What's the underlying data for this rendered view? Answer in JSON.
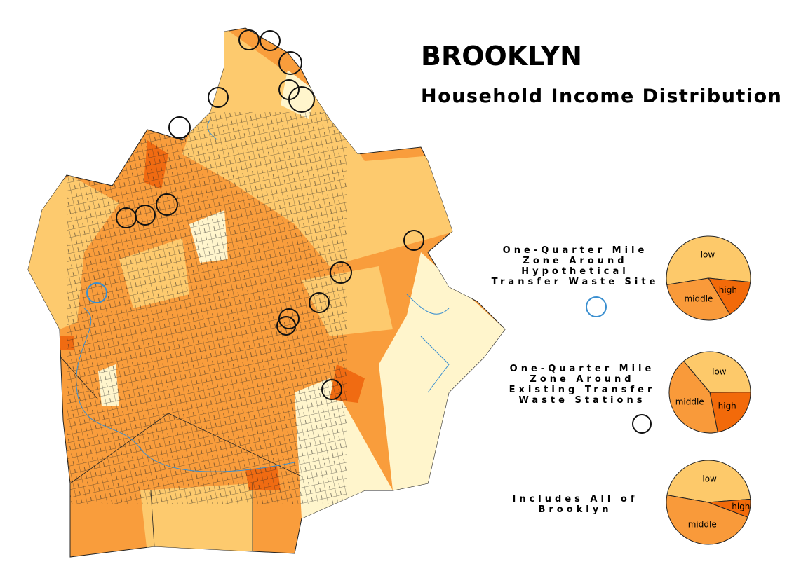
{
  "title": "BROOKLYN",
  "subtitle": "Household Income Distribution",
  "zones": [
    {
      "lines": [
        "One-Quarter Mile",
        "Zone Around",
        "Hypothetical",
        "Transfer Waste Site"
      ]
    },
    {
      "lines": [
        "One-Quarter Mile",
        "Zone Around",
        "Existing Transfer",
        "Waste Stations"
      ]
    },
    {
      "lines": [
        "Includes All of",
        "Brooklyn"
      ]
    }
  ],
  "chart_data": [
    {
      "type": "pie",
      "categories": [
        "low",
        "high",
        "middle"
      ],
      "values": [
        54,
        15,
        31
      ],
      "colors": [
        "#fdc96a",
        "#f26a0a",
        "#f99a3a"
      ]
    },
    {
      "type": "pie",
      "categories": [
        "low",
        "high",
        "middle"
      ],
      "values": [
        36,
        22,
        42
      ],
      "colors": [
        "#fdc96a",
        "#f26a0a",
        "#f99a3a"
      ]
    },
    {
      "type": "pie",
      "categories": [
        "low",
        "high",
        "middle"
      ],
      "values": [
        46,
        7,
        47
      ],
      "colors": [
        "#fdc96a",
        "#f26a0a",
        "#f99a3a"
      ]
    }
  ]
}
